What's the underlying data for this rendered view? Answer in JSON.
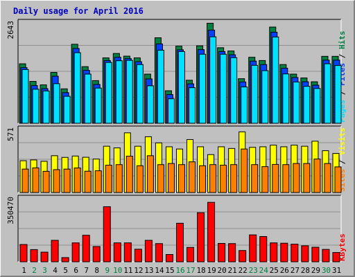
{
  "title": "Daily usage for April 2016",
  "colors": {
    "background": "#c0c0c0",
    "plot_bg": "#c0c0c0",
    "grid": "#909090",
    "title": "#0000c0",
    "hits": "#008040",
    "files": "#0040ff",
    "pages": "#00e0ff",
    "visits": "#ffff00",
    "sites": "#ff8000",
    "kbytes": "#ff0000",
    "weekend": "#008040",
    "weekday": "#000000"
  },
  "chart_data": [
    {
      "type": "bar",
      "name": "hits-files-pages",
      "ylabel_parts": [
        {
          "text": "Pages",
          "color": "#00e0ff"
        },
        {
          "text": " / ",
          "color": "#000000"
        },
        {
          "text": "Files",
          "color": "#0040ff"
        },
        {
          "text": " / ",
          "color": "#000000"
        },
        {
          "text": "Hits",
          "color": "#008040"
        }
      ],
      "max_label": "2643",
      "ylim": [
        0,
        2643
      ],
      "grid": true,
      "categories": [
        "1",
        "2",
        "3",
        "4",
        "5",
        "6",
        "7",
        "8",
        "9",
        "10",
        "11",
        "12",
        "13",
        "14",
        "15",
        "16",
        "17",
        "18",
        "19",
        "20",
        "21",
        "22",
        "23",
        "24",
        "25",
        "26",
        "27",
        "28",
        "29",
        "30",
        "31"
      ],
      "series": [
        {
          "name": "Hits",
          "values": [
            1555,
            1095,
            1005,
            1330,
            900,
            2065,
            1480,
            1115,
            1710,
            1825,
            1755,
            1710,
            1285,
            2235,
            850,
            2015,
            1125,
            2025,
            2615,
            1975,
            1890,
            1165,
            1725,
            1640,
            2515,
            1535,
            1285,
            1185,
            1085,
            1750,
            1750
          ]
        },
        {
          "name": "Files",
          "values": [
            1455,
            985,
            905,
            1230,
            800,
            1955,
            1385,
            1015,
            1640,
            1725,
            1690,
            1610,
            1160,
            2075,
            750,
            1920,
            1030,
            1925,
            2435,
            1875,
            1790,
            1080,
            1625,
            1535,
            2380,
            1440,
            1195,
            1085,
            995,
            1650,
            1650
          ]
        },
        {
          "name": "Pages",
          "values": [
            1405,
            890,
            845,
            1035,
            705,
            1845,
            1285,
            920,
            1590,
            1635,
            1645,
            1535,
            980,
            1910,
            640,
            1875,
            930,
            1805,
            2260,
            1805,
            1715,
            950,
            1515,
            1375,
            2255,
            1290,
            1080,
            965,
            910,
            1555,
            1510
          ]
        }
      ]
    },
    {
      "type": "bar",
      "name": "visits-sites",
      "ylabel_parts": [
        {
          "text": "Sites",
          "color": "#ff8000"
        },
        {
          "text": " / ",
          "color": "#000000"
        },
        {
          "text": "Visits",
          "color": "#ffff00"
        }
      ],
      "max_label": "571",
      "ylim": [
        0,
        571
      ],
      "grid": true,
      "categories": [
        "1",
        "2",
        "3",
        "4",
        "5",
        "6",
        "7",
        "8",
        "9",
        "10",
        "11",
        "12",
        "13",
        "14",
        "15",
        "16",
        "17",
        "18",
        "19",
        "20",
        "21",
        "22",
        "23",
        "24",
        "25",
        "26",
        "27",
        "28",
        "29",
        "30",
        "31"
      ],
      "series": [
        {
          "name": "Visits",
          "values": [
            285,
            292,
            280,
            330,
            315,
            327,
            316,
            300,
            415,
            400,
            535,
            415,
            500,
            445,
            410,
            390,
            475,
            410,
            340,
            410,
            395,
            544,
            405,
            410,
            425,
            410,
            425,
            415,
            460,
            375,
            350
          ]
        },
        {
          "name": "Sites",
          "values": [
            210,
            221,
            190,
            205,
            210,
            220,
            191,
            195,
            245,
            250,
            326,
            240,
            330,
            250,
            260,
            250,
            275,
            240,
            250,
            245,
            250,
            390,
            250,
            232,
            252,
            250,
            260,
            260,
            300,
            260,
            230
          ]
        }
      ]
    },
    {
      "type": "bar",
      "name": "kbytes",
      "ylabel_parts": [
        {
          "text": "KBytes",
          "color": "#ff0000"
        }
      ],
      "max_label": "350470",
      "ylim": [
        0,
        350470
      ],
      "grid": true,
      "categories": [
        "1",
        "2",
        "3",
        "4",
        "5",
        "6",
        "7",
        "8",
        "9",
        "10",
        "11",
        "12",
        "13",
        "14",
        "15",
        "16",
        "17",
        "18",
        "19",
        "20",
        "21",
        "22",
        "23",
        "24",
        "25",
        "26",
        "27",
        "28",
        "29",
        "30",
        "31"
      ],
      "series": [
        {
          "name": "KBytes",
          "values": [
            95000,
            67000,
            53000,
            118000,
            23000,
            104000,
            146000,
            84000,
            303000,
            104000,
            104000,
            69000,
            118000,
            100000,
            40000,
            212000,
            79000,
            270000,
            327000,
            101000,
            100000,
            62000,
            148000,
            139000,
            104000,
            102000,
            97000,
            88000,
            80000,
            68000,
            51000
          ]
        }
      ]
    }
  ],
  "x_labels": [
    {
      "text": "1",
      "weekend": false
    },
    {
      "text": "2",
      "weekend": true
    },
    {
      "text": "3",
      "weekend": true
    },
    {
      "text": "4",
      "weekend": false
    },
    {
      "text": "5",
      "weekend": false
    },
    {
      "text": "6",
      "weekend": false
    },
    {
      "text": "7",
      "weekend": false
    },
    {
      "text": "8",
      "weekend": false
    },
    {
      "text": "9",
      "weekend": true
    },
    {
      "text": "10",
      "weekend": true
    },
    {
      "text": "11",
      "weekend": false
    },
    {
      "text": "12",
      "weekend": false
    },
    {
      "text": "13",
      "weekend": false
    },
    {
      "text": "14",
      "weekend": false
    },
    {
      "text": "15",
      "weekend": false
    },
    {
      "text": "16",
      "weekend": true
    },
    {
      "text": "17",
      "weekend": true
    },
    {
      "text": "18",
      "weekend": false
    },
    {
      "text": "19",
      "weekend": false
    },
    {
      "text": "20",
      "weekend": false
    },
    {
      "text": "21",
      "weekend": false
    },
    {
      "text": "22",
      "weekend": false
    },
    {
      "text": "23",
      "weekend": true
    },
    {
      "text": "24",
      "weekend": true
    },
    {
      "text": "25",
      "weekend": false
    },
    {
      "text": "26",
      "weekend": false
    },
    {
      "text": "27",
      "weekend": false
    },
    {
      "text": "28",
      "weekend": false
    },
    {
      "text": "29",
      "weekend": false
    },
    {
      "text": "30",
      "weekend": true
    },
    {
      "text": "31",
      "weekend": false
    }
  ]
}
